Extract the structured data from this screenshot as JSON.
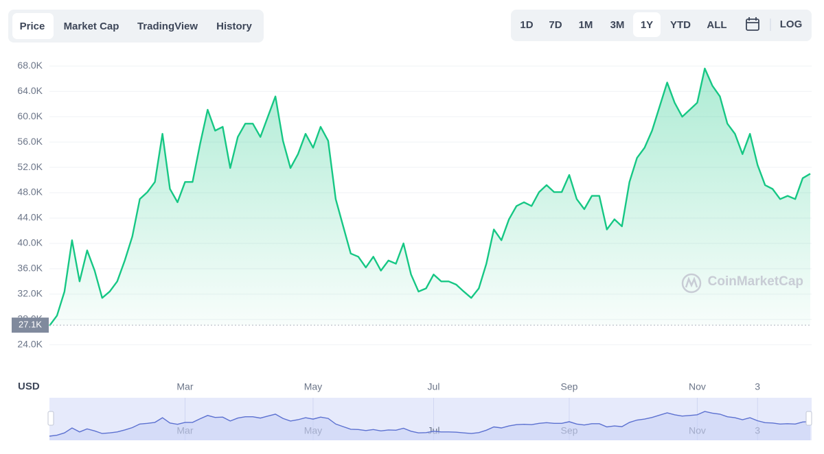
{
  "toolbar": {
    "tabs": [
      "Price",
      "Market Cap",
      "TradingView",
      "History"
    ],
    "active_tab": 0,
    "ranges": [
      "1D",
      "7D",
      "1M",
      "3M",
      "1Y",
      "YTD",
      "ALL"
    ],
    "active_range": 4,
    "log": "LOG"
  },
  "chart_data": {
    "type": "area",
    "color": "#16c784",
    "navigator_color": "#5b70d0",
    "currency": "USD",
    "watermark": "CoinMarketCap",
    "ylim": [
      19100,
      70300
    ],
    "yticks": [
      {
        "value": 24000,
        "label": "24.0K"
      },
      {
        "value": 28000,
        "label": "28.0K"
      },
      {
        "value": 32000,
        "label": "32.0K"
      },
      {
        "value": 36000,
        "label": "36.0K"
      },
      {
        "value": 40000,
        "label": "40.0K"
      },
      {
        "value": 44000,
        "label": "44.0K"
      },
      {
        "value": 48000,
        "label": "48.0K"
      },
      {
        "value": 52000,
        "label": "52.0K"
      },
      {
        "value": 56000,
        "label": "56.0K"
      },
      {
        "value": 60000,
        "label": "60.0K"
      },
      {
        "value": 64000,
        "label": "64.0K"
      },
      {
        "value": 68000,
        "label": "68.0K"
      }
    ],
    "grid": true,
    "current_value": {
      "value": 27100,
      "label": "27.1K"
    },
    "categories": [
      null,
      null,
      null,
      null,
      null,
      null,
      null,
      null,
      null,
      null,
      null,
      null,
      null,
      null,
      null,
      null,
      null,
      null,
      "Mar",
      null,
      null,
      null,
      null,
      null,
      null,
      null,
      null,
      null,
      null,
      null,
      null,
      null,
      null,
      null,
      null,
      "May",
      null,
      null,
      null,
      null,
      null,
      null,
      null,
      null,
      null,
      null,
      null,
      null,
      null,
      null,
      null,
      "Jul",
      null,
      null,
      null,
      null,
      null,
      null,
      null,
      null,
      null,
      null,
      null,
      null,
      null,
      null,
      null,
      null,
      null,
      "Sep",
      null,
      null,
      null,
      null,
      null,
      null,
      null,
      null,
      null,
      null,
      null,
      null,
      null,
      null,
      null,
      null,
      "Nov",
      null,
      null,
      null,
      null,
      null,
      null,
      null,
      "3",
      null,
      null,
      null,
      null,
      null,
      null,
      null
    ],
    "values": [
      27000,
      28600,
      32400,
      40500,
      34000,
      38900,
      35700,
      31400,
      32400,
      34000,
      37300,
      41100,
      47000,
      48100,
      49700,
      57300,
      48600,
      46500,
      49700,
      49700,
      55700,
      61100,
      57800,
      58400,
      51900,
      56800,
      58900,
      58900,
      56800,
      60000,
      63200,
      56200,
      51900,
      54100,
      57300,
      55100,
      58400,
      56200,
      47000,
      42700,
      38400,
      37900,
      36200,
      37900,
      35700,
      37300,
      36800,
      40000,
      35100,
      32400,
      32900,
      35100,
      34000,
      34000,
      33500,
      32400,
      31400,
      32900,
      36800,
      42200,
      40500,
      43800,
      45900,
      46500,
      45900,
      48100,
      49200,
      48100,
      48100,
      50800,
      47000,
      45400,
      47500,
      47500,
      42200,
      43800,
      42700,
      49700,
      53500,
      55100,
      57800,
      61600,
      65400,
      62200,
      60000,
      61100,
      62200,
      67600,
      64900,
      63200,
      58900,
      57300,
      54100,
      57300,
      52400,
      49200,
      48600,
      47000,
      47500,
      47000,
      50300,
      51000
    ]
  }
}
